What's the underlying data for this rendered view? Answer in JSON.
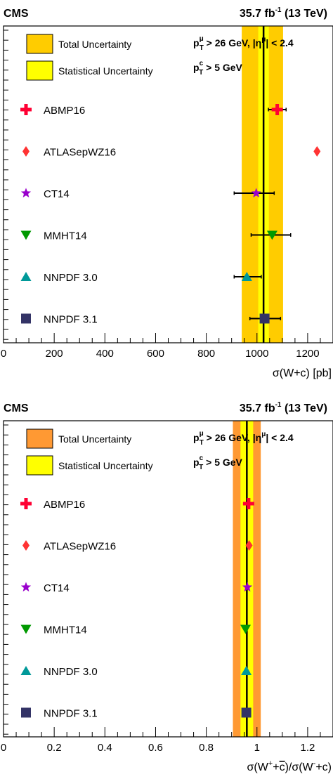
{
  "chart_data": [
    {
      "type": "scatter",
      "header_left": "CMS",
      "header_right_lumi": "35.7 fb",
      "header_right_lumi_exp": "-1",
      "header_right_energy": " (13 TeV)",
      "cut_line_1": {
        "p": "p",
        "sub": "T",
        "sup": "μ",
        "rest": " > 26 GeV, |η",
        "sup2": "μ",
        "rest2": "| < 2.4"
      },
      "cut_line_2": {
        "p": "p",
        "sub": "T",
        "sup": "c",
        "rest": " > 5 GeV"
      },
      "legend": [
        {
          "label": "Total Uncertainty",
          "color": "#ffcc00"
        },
        {
          "label": "Statistical Uncertainty",
          "color": "#ffff00"
        }
      ],
      "xlabel": "σ(W+c) [pb]",
      "xlim": [
        0,
        1300
      ],
      "x_ticks": [
        0,
        200,
        400,
        600,
        800,
        1000,
        1200
      ],
      "x_tick_labels": [
        "0",
        "200",
        "400",
        "600",
        "800",
        "1000",
        "1200"
      ],
      "measurement": {
        "value": 1026,
        "stat": [
          1005,
          1047
        ],
        "total": [
          940,
          1103
        ]
      },
      "series": [
        {
          "name": "ABMP16",
          "marker": "cross",
          "color": "#ff0033",
          "value": 1080,
          "err": [
            1045,
            1115
          ]
        },
        {
          "name": "ATLASepWZ16",
          "marker": "diamond",
          "color": "#ff3333",
          "value": 1237,
          "err": [
            1237,
            1237
          ]
        },
        {
          "name": "CT14",
          "marker": "star",
          "color": "#9900cc",
          "value": 997,
          "err": [
            910,
            1068
          ]
        },
        {
          "name": "MMHT14",
          "marker": "triangle-down",
          "color": "#009900",
          "value": 1060,
          "err": [
            977,
            1133
          ]
        },
        {
          "name": "NNPDF 3.0",
          "marker": "triangle-up",
          "color": "#009999",
          "value": 960,
          "err": [
            910,
            1017
          ]
        },
        {
          "name": "NNPDF 3.1",
          "marker": "square",
          "color": "#333366",
          "value": 1030,
          "err": [
            972,
            1093
          ]
        }
      ]
    },
    {
      "type": "scatter",
      "header_left": "CMS",
      "header_right_lumi": "35.7 fb",
      "header_right_lumi_exp": "-1",
      "header_right_energy": " (13 TeV)",
      "cut_line_1": {
        "p": "p",
        "sub": "T",
        "sup": "μ",
        "rest": " > 26 GeV, |η",
        "sup2": "μ",
        "rest2": "| < 2.4"
      },
      "cut_line_2": {
        "p": "p",
        "sub": "T",
        "sup": "c",
        "rest": " > 5 GeV"
      },
      "legend": [
        {
          "label": "Total Uncertainty",
          "color": "#ff9933"
        },
        {
          "label": "Statistical Uncertainty",
          "color": "#ffff00"
        }
      ],
      "xlabel_parts": {
        "a": "σ(W",
        "a_sup": "+",
        "b": "+",
        "c_bar": "c",
        "d": ")/σ(W",
        "d_sup": "-",
        "e": "+c)"
      },
      "xlim": [
        0,
        1.3
      ],
      "x_ticks": [
        0,
        0.2,
        0.4,
        0.6,
        0.8,
        1.0,
        1.2
      ],
      "x_tick_labels": [
        "0",
        "0.2",
        "0.4",
        "0.6",
        "0.8",
        "1",
        "1.2"
      ],
      "measurement": {
        "value": 0.96,
        "stat": [
          0.935,
          0.985
        ],
        "total": [
          0.905,
          1.015
        ]
      },
      "series": [
        {
          "name": "ABMP16",
          "marker": "cross",
          "color": "#ff0033",
          "value": 0.967,
          "err": [
            0.967,
            0.967
          ]
        },
        {
          "name": "ATLASepWZ16",
          "marker": "diamond",
          "color": "#ff3333",
          "value": 0.969,
          "err": [
            0.969,
            0.969
          ]
        },
        {
          "name": "CT14",
          "marker": "star",
          "color": "#9900cc",
          "value": 0.962,
          "err": [
            0.962,
            0.962
          ]
        },
        {
          "name": "MMHT14",
          "marker": "triangle-down",
          "color": "#009900",
          "value": 0.955,
          "err": [
            0.955,
            0.955
          ]
        },
        {
          "name": "NNPDF 3.0",
          "marker": "triangle-up",
          "color": "#009999",
          "value": 0.958,
          "err": [
            0.958,
            0.958
          ]
        },
        {
          "name": "NNPDF 3.1",
          "marker": "square",
          "color": "#333366",
          "value": 0.958,
          "err": [
            0.958,
            0.958
          ]
        }
      ]
    }
  ]
}
